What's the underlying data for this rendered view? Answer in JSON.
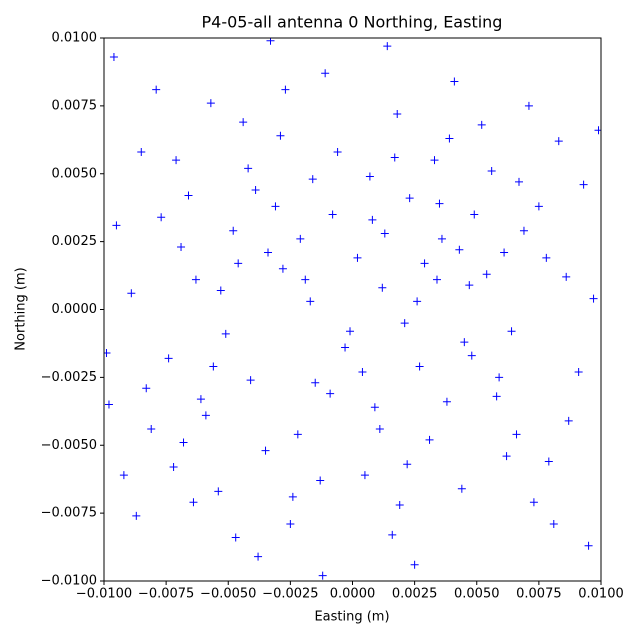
{
  "chart_data": {
    "type": "scatter",
    "title": "P4-05-all antenna 0 Northing, Easting",
    "x_label": "Easting (m)",
    "y_label": "Northing (m)",
    "marker": "+",
    "color": "#0000ff",
    "xlim": [
      -0.01,
      0.01
    ],
    "ylim": [
      -0.01,
      0.01
    ],
    "xticks": [
      {
        "value": -0.01,
        "label": "−0.0100"
      },
      {
        "value": -0.0075,
        "label": "−0.0075"
      },
      {
        "value": -0.005,
        "label": "−0.0050"
      },
      {
        "value": -0.0025,
        "label": "−0.0025"
      },
      {
        "value": 0,
        "label": "0.0000"
      },
      0.0025,
      {
        "value": 0.005,
        "label": "0.0050"
      },
      0.0075,
      {
        "value": 0.01,
        "label": "0.0100"
      }
    ],
    "yticks": [
      {
        "value": -0.01,
        "label": "−0.0100"
      },
      {
        "value": -0.0075,
        "label": "−0.0075"
      },
      {
        "value": -0.005,
        "label": "−0.0050"
      },
      {
        "value": -0.0025,
        "label": "−0.0025"
      },
      {
        "value": 0,
        "label": "0.0000"
      },
      0.0025,
      {
        "value": 0.005,
        "label": "0.0050"
      },
      0.0075,
      {
        "value": 0.01,
        "label": "0.0100"
      }
    ],
    "x": [
      0.0012,
      -0.0034,
      0.0045,
      -0.0061,
      0.0023,
      -0.0015,
      0.0078,
      -0.0089,
      0.0031,
      -0.0042,
      0.0005,
      0.0067,
      -0.0072,
      0.0091,
      -0.0095,
      0.0018,
      -0.0025,
      0.0054,
      -0.0008,
      0.0036,
      -0.0051,
      0.0027,
      -0.0019,
      0.0062,
      -0.0066,
      0.0009,
      0.0083,
      -0.0081,
      0.0041,
      -0.0038,
      0.0014,
      -0.0012,
      0.0097,
      -0.0099,
      0.0049,
      -0.0029,
      0.0073,
      -0.0057,
      0.0002,
      -0.0003,
      0.0021,
      -0.0046,
      0.0058,
      -0.0069,
      0.0033,
      -0.0022,
      0.0087,
      -0.0085,
      0.0016,
      -0.0011,
      0.0044,
      -0.0054,
      0.0069,
      -0.0074,
      0.0026,
      -0.0031,
      0.0052,
      -0.0063,
      0.0007,
      -0.0017,
      0.0038,
      -0.0041,
      0.0093,
      -0.0092,
      0.0011,
      -0.0006,
      0.0064,
      -0.0048,
      0.0029,
      -0.0035,
      0.0079,
      -0.0077,
      0.0019,
      -0.0027,
      0.0047,
      -0.0059,
      0.0035,
      -0.0013,
      0.0071,
      -0.0087,
      0.0004,
      -0.0021,
      0.0056,
      -0.0044,
      0.0095,
      -0.0096,
      0.0025,
      -0.0033,
      0.0061,
      -0.0068,
      0.0013,
      -0.0009,
      0.0048,
      -0.0053,
      0.0086,
      -0.0083,
      0.0039,
      -0.0024,
      0.0066,
      -0.0071,
      0.0008,
      -0.0001,
      0.0034,
      -0.0039,
      0.0075,
      -0.0064,
      0.0022,
      -0.0016,
      0.0059,
      -0.0056,
      0.0043,
      -0.0028,
      0.0099,
      -0.0098,
      0.0017,
      -0.0047,
      0.0081,
      -0.0079
    ],
    "y": [
      0.0008,
      0.0021,
      -0.0012,
      -0.0033,
      0.0041,
      -0.0027,
      0.0019,
      0.0006,
      -0.0048,
      0.0052,
      -0.0061,
      0.0047,
      -0.0058,
      -0.0023,
      0.0031,
      0.0072,
      -0.0079,
      0.0013,
      0.0035,
      0.0026,
      -0.0009,
      -0.0021,
      0.0011,
      -0.0054,
      0.0042,
      -0.0036,
      0.0062,
      -0.0044,
      0.0084,
      -0.0091,
      0.0097,
      -0.0098,
      0.0004,
      -0.0016,
      0.0035,
      0.0064,
      -0.0071,
      0.0076,
      0.0019,
      -0.0014,
      -0.0005,
      0.0017,
      -0.0032,
      0.0023,
      0.0055,
      -0.0046,
      -0.0041,
      0.0058,
      -0.0083,
      0.0087,
      -0.0066,
      -0.0067,
      0.0029,
      -0.0018,
      0.0003,
      0.0038,
      0.0068,
      0.0011,
      0.0049,
      0.0003,
      -0.0034,
      -0.0026,
      0.0046,
      -0.0061,
      -0.0044,
      0.0058,
      -0.0008,
      0.0029,
      0.0017,
      -0.0052,
      -0.0056,
      0.0034,
      -0.0072,
      0.0081,
      0.0009,
      -0.0039,
      0.0039,
      -0.0063,
      0.0075,
      -0.0076,
      -0.0023,
      0.0026,
      0.0051,
      0.0069,
      -0.0087,
      0.0093,
      -0.0094,
      0.0099,
      0.0021,
      -0.0049,
      0.0028,
      -0.0031,
      -0.0017,
      0.0007,
      0.0012,
      -0.0029,
      0.0063,
      -0.0069,
      -0.0046,
      0.0055,
      0.0033,
      -0.0008,
      0.0011,
      0.0044,
      0.0038,
      -0.0071,
      -0.0057,
      0.0048,
      -0.0025,
      -0.0021,
      0.0022,
      0.0015,
      0.0066,
      -0.0035,
      0.0056,
      -0.0084,
      -0.0079,
      0.0081
    ]
  }
}
